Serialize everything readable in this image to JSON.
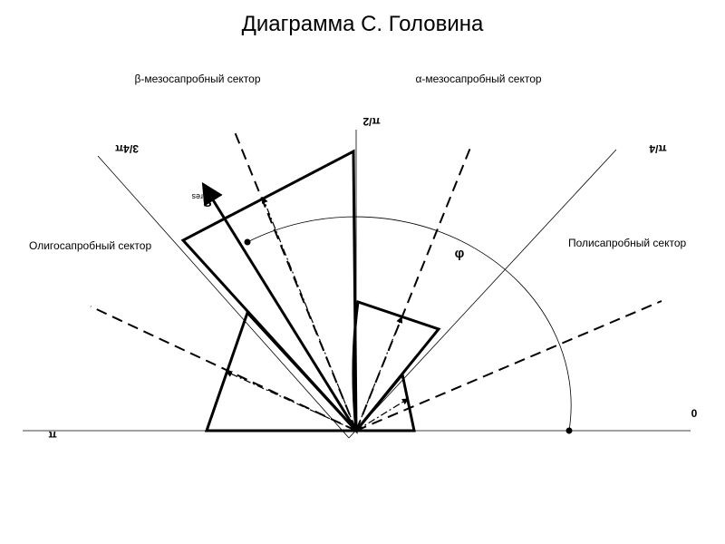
{
  "title": "Диаграмма С. Головина",
  "sectors": {
    "beta": "β-мезосапробный  сектор",
    "alpha": "α-мезосапробный  сектор",
    "oligo": "Олигосапробный  сектор",
    "poly": "Полисапробный  сектор"
  },
  "angles": {
    "half_pi": "π/2",
    "three_quarter_pi": "3/4π",
    "quarter_pi": "π/4",
    "zero": "0",
    "pi": "π",
    "phi": "φ"
  },
  "vector": {
    "name": "S",
    "subscript": "res"
  }
}
